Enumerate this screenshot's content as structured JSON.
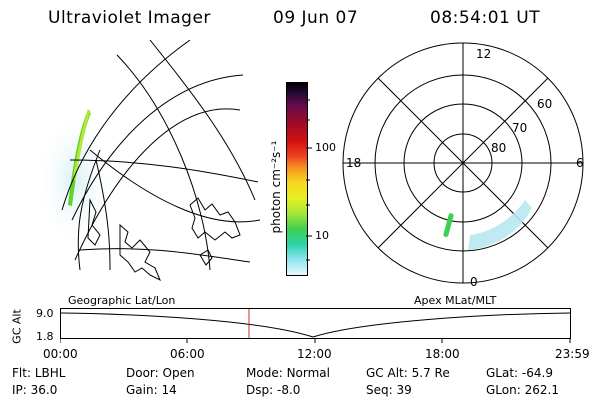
{
  "header": {
    "title": "Ultraviolet Imager",
    "date": "09 Jun 07",
    "time": "08:54:01 UT"
  },
  "colorbar": {
    "unit_label": "photon cm⁻²s⁻¹",
    "ticks": [
      "100",
      "10"
    ]
  },
  "polar_plot": {
    "mlt_labels": [
      "12",
      "18",
      "6",
      "0"
    ],
    "lat_labels": [
      "60",
      "70",
      "80"
    ]
  },
  "timeline": {
    "left_label": "Geographic Lat/Lon",
    "right_label": "Apex MLat/MLT",
    "axis_title": "GC Alt",
    "y_ticks": [
      "9.0",
      "1.8"
    ],
    "x_ticks": [
      "00:00",
      "06:00",
      "12:00",
      "18:00",
      "23:59"
    ],
    "current_time_marker": "08:54"
  },
  "info": {
    "row1": [
      {
        "key": "Flt:",
        "val": "LBHL"
      },
      {
        "key": "Door:",
        "val": "Open"
      },
      {
        "key": "Mode:",
        "val": "Normal"
      },
      {
        "key": "GC Alt:",
        "val": "5.7 Re"
      },
      {
        "key": "GLat:",
        "val": "-64.9"
      }
    ],
    "row2": [
      {
        "key": "IP:",
        "val": "36.0"
      },
      {
        "key": "Gain:",
        "val": "14"
      },
      {
        "key": "Dsp:",
        "val": "-8.0"
      },
      {
        "key": "Seq:",
        "val": "39"
      },
      {
        "key": "GLon:",
        "val": "262.1"
      }
    ]
  }
}
